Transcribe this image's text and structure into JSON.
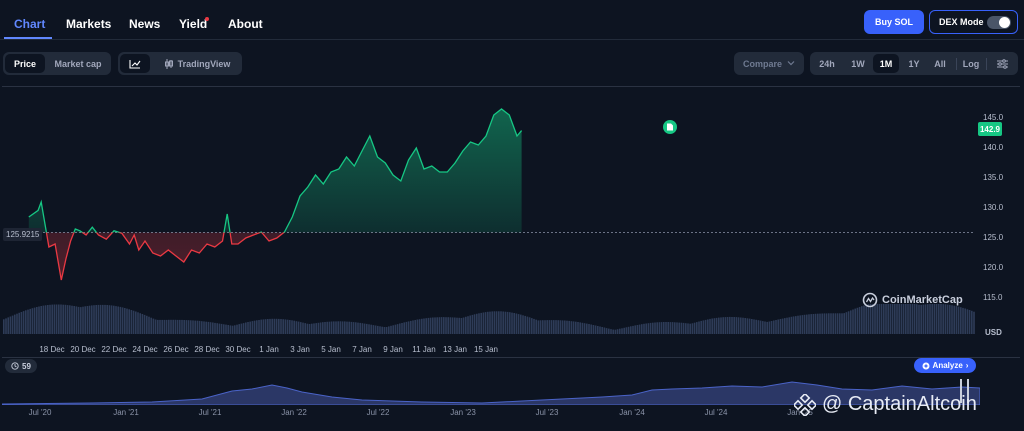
{
  "nav": {
    "tabs": [
      {
        "label": "Chart"
      },
      {
        "label": "Markets"
      },
      {
        "label": "News"
      },
      {
        "label": "Yield"
      },
      {
        "label": "About"
      }
    ],
    "buy_label": "Buy SOL",
    "dex_label": "DEX Mode"
  },
  "controls": {
    "price_label": "Price",
    "marketcap_label": "Market cap",
    "tradingview_label": "TradingView",
    "compare_label": "Compare",
    "ranges": [
      "24h",
      "1W",
      "1M",
      "1Y",
      "All"
    ],
    "active_range": "1M",
    "log_label": "Log"
  },
  "chart": {
    "last_price": "142.9",
    "base_price": "125.9215",
    "currency": "USD",
    "logo_text": "CoinMarketCap",
    "up_color": "#16c784",
    "down_color": "#ea3943",
    "events_count": "59",
    "analyze_label": "Analyze",
    "overview_labels": [
      "Jul '20",
      "Jan '21",
      "Jul '21",
      "Jan '22",
      "Jul '22",
      "Jan '23",
      "Jul '23",
      "Jan '24",
      "Jul '24",
      "Jan '25"
    ]
  },
  "chart_data": {
    "type": "line",
    "ylabel": "USD",
    "ylim": [
      115,
      148
    ],
    "y_ticks": [
      "145.0",
      "140.0",
      "135.0",
      "130.0",
      "125.0",
      "120.0",
      "115.0"
    ],
    "x_ticks": [
      "18 Dec",
      "20 Dec",
      "22 Dec",
      "24 Dec",
      "26 Dec",
      "28 Dec",
      "30 Dec",
      "1 Jan",
      "3 Jan",
      "5 Jan",
      "7 Jan",
      "9 Jan",
      "11 Jan",
      "13 Jan",
      "15 Jan"
    ],
    "baseline": 125.9215,
    "series": [
      {
        "x_day": [
          16.5,
          17.1,
          17.3,
          17.8,
          18.2,
          18.4,
          18.6,
          18.9,
          19.2,
          19.5,
          19.8,
          20.2,
          20.6,
          21.0,
          21.5,
          22.0,
          22.5,
          23.0,
          23.3,
          23.6,
          24.0,
          24.5,
          25.0,
          25.5,
          26.0,
          26.5,
          27.0,
          27.5,
          28.0,
          28.5,
          29.0,
          29.3,
          29.6,
          30.0,
          30.5,
          31.0,
          31.5,
          32.0,
          32.5,
          33.0,
          33.5,
          34.0,
          34.5,
          35.0,
          35.5,
          36.0,
          36.5,
          37.0,
          37.5,
          38.0,
          38.5,
          39.0,
          39.5,
          40.0,
          40.5,
          41.0,
          41.5,
          42.0,
          42.5,
          43.0,
          43.5,
          44.0,
          44.5,
          45.0,
          45.5,
          46.0,
          46.5,
          47.0,
          47.5,
          48.0,
          48.3
        ],
        "values": [
          128.5,
          129.6,
          131.0,
          123.5,
          124.0,
          121.0,
          118.0,
          121.5,
          124.5,
          126.5,
          126.2,
          125.5,
          126.8,
          125.5,
          124.8,
          126.2,
          125.8,
          124.0,
          125.5,
          123.0,
          124.5,
          122.5,
          122.0,
          123.0,
          122.0,
          121.0,
          123.0,
          122.5,
          124.0,
          123.5,
          124.5,
          129.0,
          124.0,
          124.0,
          125.0,
          125.5,
          126.0,
          124.5,
          125.0,
          126.0,
          128.5,
          132.0,
          133.5,
          135.5,
          134.0,
          136.0,
          136.5,
          138.5,
          137.0,
          139.5,
          142.0,
          138.5,
          137.5,
          135.5,
          134.5,
          138.0,
          140.0,
          136.5,
          137.0,
          136.0,
          136.0,
          137.5,
          139.5,
          141.0,
          140.5,
          142.0,
          145.5,
          146.5,
          145.5,
          142.0,
          142.9
        ]
      }
    ],
    "volume_note": "volume bars shown beneath price line"
  }
}
